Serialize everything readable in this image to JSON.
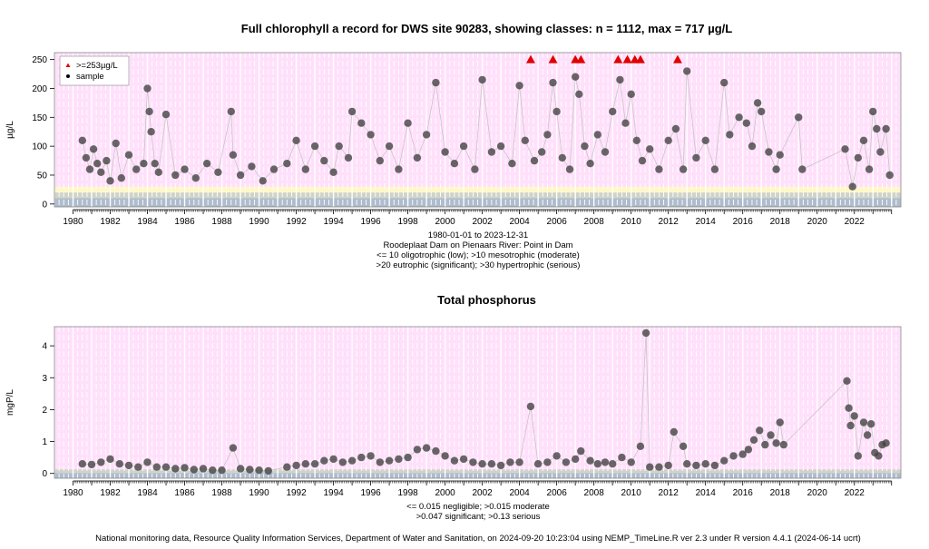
{
  "footer": "National monitoring data, Resource Quality Information Services, Department of Water and Sanitation, on 2024-09-20 10:23:04 using NEMP_TimeLine.R ver 2.3 under R version 4.4.1 (2024-06-14 ucrt)",
  "colors": {
    "panel_bg": "#ffe0fb",
    "band_oligotrophic": "#aebccd",
    "band_mesotrophic": "#cfd3c8",
    "band_eutrophic": "#fff7c8",
    "point": "#444444",
    "marker_red": "#e00000",
    "grid_white": "#ffffff"
  },
  "chart_data": [
    {
      "type": "scatter",
      "title": "Full chlorophyll a record for DWS site 90283, showing classes: n = 1112, max = 717 µg/L",
      "ylabel": "µg/L",
      "xlabel": "",
      "xlim": [
        1979,
        2024.5
      ],
      "ylim": [
        -5,
        262
      ],
      "yticks": [
        0,
        50,
        100,
        150,
        200,
        250
      ],
      "xticks": [
        1980,
        1982,
        1984,
        1986,
        1988,
        1990,
        1992,
        1994,
        1996,
        1998,
        2000,
        2002,
        2004,
        2006,
        2008,
        2010,
        2012,
        2014,
        2016,
        2018,
        2020,
        2022
      ],
      "legend": {
        "placement": "top-left",
        "entries": [
          ">=253µg/L",
          "sample"
        ]
      },
      "captions": [
        "1980-01-01 to 2023-12-31",
        "Roodeplaat Dam on Pienaars River: Point in Dam",
        "<= 10 oligotrophic (low); >10 mesotrophic (moderate)",
        ">20 eutrophic (significant); >30 hypertrophic (serious)"
      ],
      "class_bands": [
        {
          "from": -5,
          "to": 10,
          "class": "oligotrophic"
        },
        {
          "from": 10,
          "to": 20,
          "class": "mesotrophic"
        },
        {
          "from": 20,
          "to": 30,
          "class": "eutrophic"
        },
        {
          "from": 30,
          "to": 262,
          "class": "hypertrophic"
        }
      ],
      "points": [
        [
          1980.5,
          110
        ],
        [
          1980.7,
          80
        ],
        [
          1980.9,
          60
        ],
        [
          1981.1,
          95
        ],
        [
          1981.3,
          70
        ],
        [
          1981.5,
          55
        ],
        [
          1981.8,
          75
        ],
        [
          1982.0,
          40
        ],
        [
          1982.3,
          105
        ],
        [
          1982.6,
          45
        ],
        [
          1983.0,
          85
        ],
        [
          1983.4,
          60
        ],
        [
          1983.8,
          70
        ],
        [
          1984.0,
          200
        ],
        [
          1984.1,
          160
        ],
        [
          1984.2,
          125
        ],
        [
          1984.4,
          70
        ],
        [
          1984.6,
          55
        ],
        [
          1985.0,
          155
        ],
        [
          1985.5,
          50
        ],
        [
          1986.0,
          60
        ],
        [
          1986.6,
          45
        ],
        [
          1987.2,
          70
        ],
        [
          1987.8,
          55
        ],
        [
          1988.5,
          160
        ],
        [
          1988.6,
          85
        ],
        [
          1989.0,
          50
        ],
        [
          1989.6,
          65
        ],
        [
          1990.2,
          40
        ],
        [
          1990.8,
          60
        ],
        [
          1991.5,
          70
        ],
        [
          1992.0,
          110
        ],
        [
          1992.5,
          60
        ],
        [
          1993.0,
          100
        ],
        [
          1993.5,
          75
        ],
        [
          1994.0,
          55
        ],
        [
          1994.3,
          100
        ],
        [
          1994.8,
          80
        ],
        [
          1995.0,
          160
        ],
        [
          1995.5,
          140
        ],
        [
          1996.0,
          120
        ],
        [
          1996.5,
          75
        ],
        [
          1997.0,
          100
        ],
        [
          1997.5,
          60
        ],
        [
          1998.0,
          140
        ],
        [
          1998.5,
          80
        ],
        [
          1999.0,
          120
        ],
        [
          1999.5,
          210
        ],
        [
          2000.0,
          90
        ],
        [
          2000.5,
          70
        ],
        [
          2001.0,
          100
        ],
        [
          2001.6,
          60
        ],
        [
          2002.0,
          215
        ],
        [
          2002.5,
          90
        ],
        [
          2003.0,
          100
        ],
        [
          2003.6,
          70
        ],
        [
          2004.0,
          205
        ],
        [
          2004.3,
          110
        ],
        [
          2004.8,
          75
        ],
        [
          2005.2,
          90
        ],
        [
          2005.5,
          120
        ],
        [
          2005.8,
          210
        ],
        [
          2006.0,
          160
        ],
        [
          2006.3,
          80
        ],
        [
          2006.7,
          60
        ],
        [
          2007.0,
          220
        ],
        [
          2007.2,
          190
        ],
        [
          2007.5,
          100
        ],
        [
          2007.8,
          70
        ],
        [
          2008.2,
          120
        ],
        [
          2008.6,
          90
        ],
        [
          2009.0,
          160
        ],
        [
          2009.4,
          215
        ],
        [
          2009.7,
          140
        ],
        [
          2010.0,
          190
        ],
        [
          2010.3,
          110
        ],
        [
          2010.6,
          75
        ],
        [
          2011.0,
          95
        ],
        [
          2011.5,
          60
        ],
        [
          2012.0,
          110
        ],
        [
          2012.4,
          130
        ],
        [
          2012.8,
          60
        ],
        [
          2013.0,
          230
        ],
        [
          2013.5,
          80
        ],
        [
          2014.0,
          110
        ],
        [
          2014.5,
          60
        ],
        [
          2015.0,
          210
        ],
        [
          2015.3,
          120
        ],
        [
          2015.8,
          150
        ],
        [
          2016.2,
          140
        ],
        [
          2016.5,
          100
        ],
        [
          2016.8,
          175
        ],
        [
          2017.0,
          160
        ],
        [
          2017.4,
          90
        ],
        [
          2017.8,
          60
        ],
        [
          2018.0,
          85
        ],
        [
          2019.0,
          150
        ],
        [
          2019.2,
          60
        ],
        [
          2021.5,
          95
        ],
        [
          2021.9,
          30
        ],
        [
          2022.2,
          80
        ],
        [
          2022.5,
          110
        ],
        [
          2022.8,
          60
        ],
        [
          2023.0,
          160
        ],
        [
          2023.2,
          130
        ],
        [
          2023.4,
          90
        ],
        [
          2023.7,
          130
        ],
        [
          2023.9,
          50
        ]
      ],
      "exceed_points": [
        2004.6,
        2005.8,
        2007.0,
        2007.3,
        2009.3,
        2009.8,
        2010.2,
        2010.5,
        2012.5
      ]
    },
    {
      "type": "scatter",
      "title": "Total phosphorus",
      "ylabel": "mgP/L",
      "xlabel": "",
      "xlim": [
        1979,
        2024.5
      ],
      "ylim": [
        -0.15,
        4.6
      ],
      "yticks": [
        0,
        1,
        2,
        3,
        4
      ],
      "xticks": [
        1980,
        1982,
        1984,
        1986,
        1988,
        1990,
        1992,
        1994,
        1996,
        1998,
        2000,
        2002,
        2004,
        2006,
        2008,
        2010,
        2012,
        2014,
        2016,
        2018,
        2020,
        2022
      ],
      "captions": [
        "<= 0.015 negligible; >0.015 moderate",
        ">0.047 significant; >0.13 serious"
      ],
      "class_bands": [
        {
          "from": -0.15,
          "to": 0.015,
          "class": "negligible"
        },
        {
          "from": 0.015,
          "to": 0.047,
          "class": "moderate"
        },
        {
          "from": 0.047,
          "to": 0.13,
          "class": "significant"
        },
        {
          "from": 0.13,
          "to": 4.6,
          "class": "serious"
        }
      ],
      "points": [
        [
          1980.5,
          0.3
        ],
        [
          1981.0,
          0.28
        ],
        [
          1981.5,
          0.35
        ],
        [
          1982.0,
          0.45
        ],
        [
          1982.5,
          0.3
        ],
        [
          1983.0,
          0.25
        ],
        [
          1983.5,
          0.2
        ],
        [
          1984.0,
          0.35
        ],
        [
          1984.5,
          0.2
        ],
        [
          1985.0,
          0.2
        ],
        [
          1985.5,
          0.15
        ],
        [
          1986.0,
          0.18
        ],
        [
          1986.5,
          0.12
        ],
        [
          1987.0,
          0.15
        ],
        [
          1987.5,
          0.1
        ],
        [
          1988.0,
          0.1
        ],
        [
          1988.6,
          0.8
        ],
        [
          1989.0,
          0.15
        ],
        [
          1989.5,
          0.12
        ],
        [
          1990.0,
          0.1
        ],
        [
          1990.5,
          0.08
        ],
        [
          1991.5,
          0.2
        ],
        [
          1992.0,
          0.25
        ],
        [
          1992.5,
          0.3
        ],
        [
          1993.0,
          0.3
        ],
        [
          1993.5,
          0.4
        ],
        [
          1994.0,
          0.45
        ],
        [
          1994.5,
          0.35
        ],
        [
          1995.0,
          0.4
        ],
        [
          1995.5,
          0.5
        ],
        [
          1996.0,
          0.55
        ],
        [
          1996.5,
          0.35
        ],
        [
          1997.0,
          0.4
        ],
        [
          1997.5,
          0.45
        ],
        [
          1998.0,
          0.5
        ],
        [
          1998.5,
          0.75
        ],
        [
          1999.0,
          0.8
        ],
        [
          1999.5,
          0.7
        ],
        [
          2000.0,
          0.55
        ],
        [
          2000.5,
          0.4
        ],
        [
          2001.0,
          0.45
        ],
        [
          2001.5,
          0.35
        ],
        [
          2002.0,
          0.3
        ],
        [
          2002.5,
          0.3
        ],
        [
          2003.0,
          0.25
        ],
        [
          2003.5,
          0.35
        ],
        [
          2004.0,
          0.35
        ],
        [
          2004.6,
          2.1
        ],
        [
          2005.0,
          0.3
        ],
        [
          2005.5,
          0.35
        ],
        [
          2006.0,
          0.55
        ],
        [
          2006.5,
          0.35
        ],
        [
          2007.0,
          0.45
        ],
        [
          2007.3,
          0.7
        ],
        [
          2007.8,
          0.4
        ],
        [
          2008.2,
          0.3
        ],
        [
          2008.6,
          0.35
        ],
        [
          2009.0,
          0.3
        ],
        [
          2009.5,
          0.5
        ],
        [
          2010.0,
          0.35
        ],
        [
          2010.5,
          0.85
        ],
        [
          2010.8,
          4.4
        ],
        [
          2011.0,
          0.2
        ],
        [
          2011.5,
          0.2
        ],
        [
          2012.0,
          0.25
        ],
        [
          2012.3,
          1.3
        ],
        [
          2012.8,
          0.85
        ],
        [
          2013.0,
          0.3
        ],
        [
          2013.5,
          0.25
        ],
        [
          2014.0,
          0.3
        ],
        [
          2014.5,
          0.25
        ],
        [
          2015.0,
          0.4
        ],
        [
          2015.5,
          0.55
        ],
        [
          2016.0,
          0.6
        ],
        [
          2016.3,
          0.75
        ],
        [
          2016.6,
          1.05
        ],
        [
          2016.9,
          1.35
        ],
        [
          2017.2,
          0.9
        ],
        [
          2017.5,
          1.2
        ],
        [
          2017.8,
          0.95
        ],
        [
          2018.0,
          1.6
        ],
        [
          2018.2,
          0.9
        ],
        [
          2021.6,
          2.9
        ],
        [
          2021.7,
          2.05
        ],
        [
          2021.8,
          1.5
        ],
        [
          2022.0,
          1.8
        ],
        [
          2022.2,
          0.55
        ],
        [
          2022.5,
          1.6
        ],
        [
          2022.7,
          1.2
        ],
        [
          2022.9,
          1.55
        ],
        [
          2023.1,
          0.65
        ],
        [
          2023.3,
          0.55
        ],
        [
          2023.5,
          0.9
        ],
        [
          2023.7,
          0.95
        ]
      ]
    }
  ]
}
